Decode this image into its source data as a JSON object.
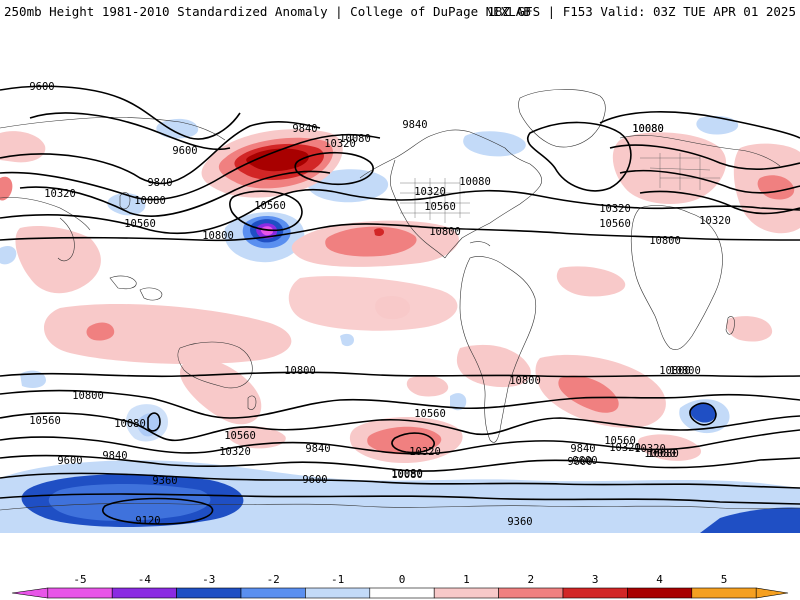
{
  "header": {
    "title": "250mb Height 1981-2010 Standardized Anomaly | College of DuPage NEXLAB",
    "run_info": "18Z GFS | F153 Valid: 03Z TUE APR 01 2025"
  },
  "colors": {
    "neg5": "#e855e8",
    "neg4": "#8a2be2",
    "neg3": "#1f4fc4",
    "neg2": "#5a8ff0",
    "neg1": "#c3daf8",
    "zero": "#ffffff",
    "pos1": "#f8c9c9",
    "pos2": "#f08080",
    "pos3": "#d22626",
    "pos4": "#a80000",
    "pos5": "#f5a020"
  },
  "colorbar": {
    "ticks": [
      "-5",
      "-4",
      "-3",
      "-2",
      "-1",
      "0",
      "1",
      "2",
      "3",
      "4",
      "5"
    ]
  },
  "contour_labels": [
    "9600",
    "9600",
    "10320",
    "9840",
    "10080",
    "10560",
    "10320",
    "10080",
    "10560",
    "10800",
    "9840",
    "10080",
    "10320",
    "10560",
    "10080",
    "10800",
    "9840",
    "10080",
    "10320",
    "10560",
    "10320",
    "10800",
    "10800",
    "10800",
    "10560",
    "10800",
    "10080",
    "10560",
    "10320",
    "9600",
    "9840",
    "10560",
    "10320",
    "9840",
    "10080",
    "9600",
    "9360",
    "9120",
    "9600",
    "10320",
    "10080",
    "9360",
    "9600",
    "9840",
    "10080",
    "10560",
    "10320",
    "10080",
    "10800",
    "10800",
    "10560"
  ]
}
